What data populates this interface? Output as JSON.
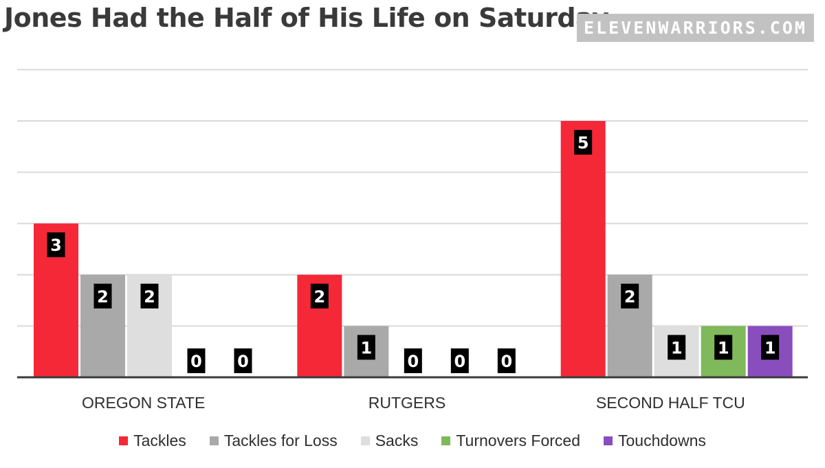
{
  "header": {
    "title": "Jones Had the Half of His Life on Saturday",
    "brand": "ELEVENWARRIORS.COM"
  },
  "chart_data": {
    "type": "bar",
    "title": "Jones Had the Half of His Life on Saturday",
    "xlabel": "",
    "ylabel": "",
    "ylim": [
      0,
      6
    ],
    "grid": true,
    "legend_position": "bottom",
    "categories": [
      "OREGON STATE",
      "RUTGERS",
      "SECOND HALF TCU"
    ],
    "series": [
      {
        "name": "Tackles",
        "color": "#f52838",
        "values": [
          3,
          2,
          5
        ]
      },
      {
        "name": "Tackles for Loss",
        "color": "#a9a9a9",
        "values": [
          2,
          1,
          2
        ]
      },
      {
        "name": "Sacks",
        "color": "#dedede",
        "values": [
          2,
          0,
          1
        ]
      },
      {
        "name": "Turnovers Forced",
        "color": "#7fb95b",
        "values": [
          0,
          0,
          1
        ]
      },
      {
        "name": "Touchdowns",
        "color": "#8a4dbd",
        "values": [
          0,
          0,
          1
        ]
      }
    ],
    "data_label_style": {
      "background": "#000000",
      "color": "#ffffff"
    }
  }
}
